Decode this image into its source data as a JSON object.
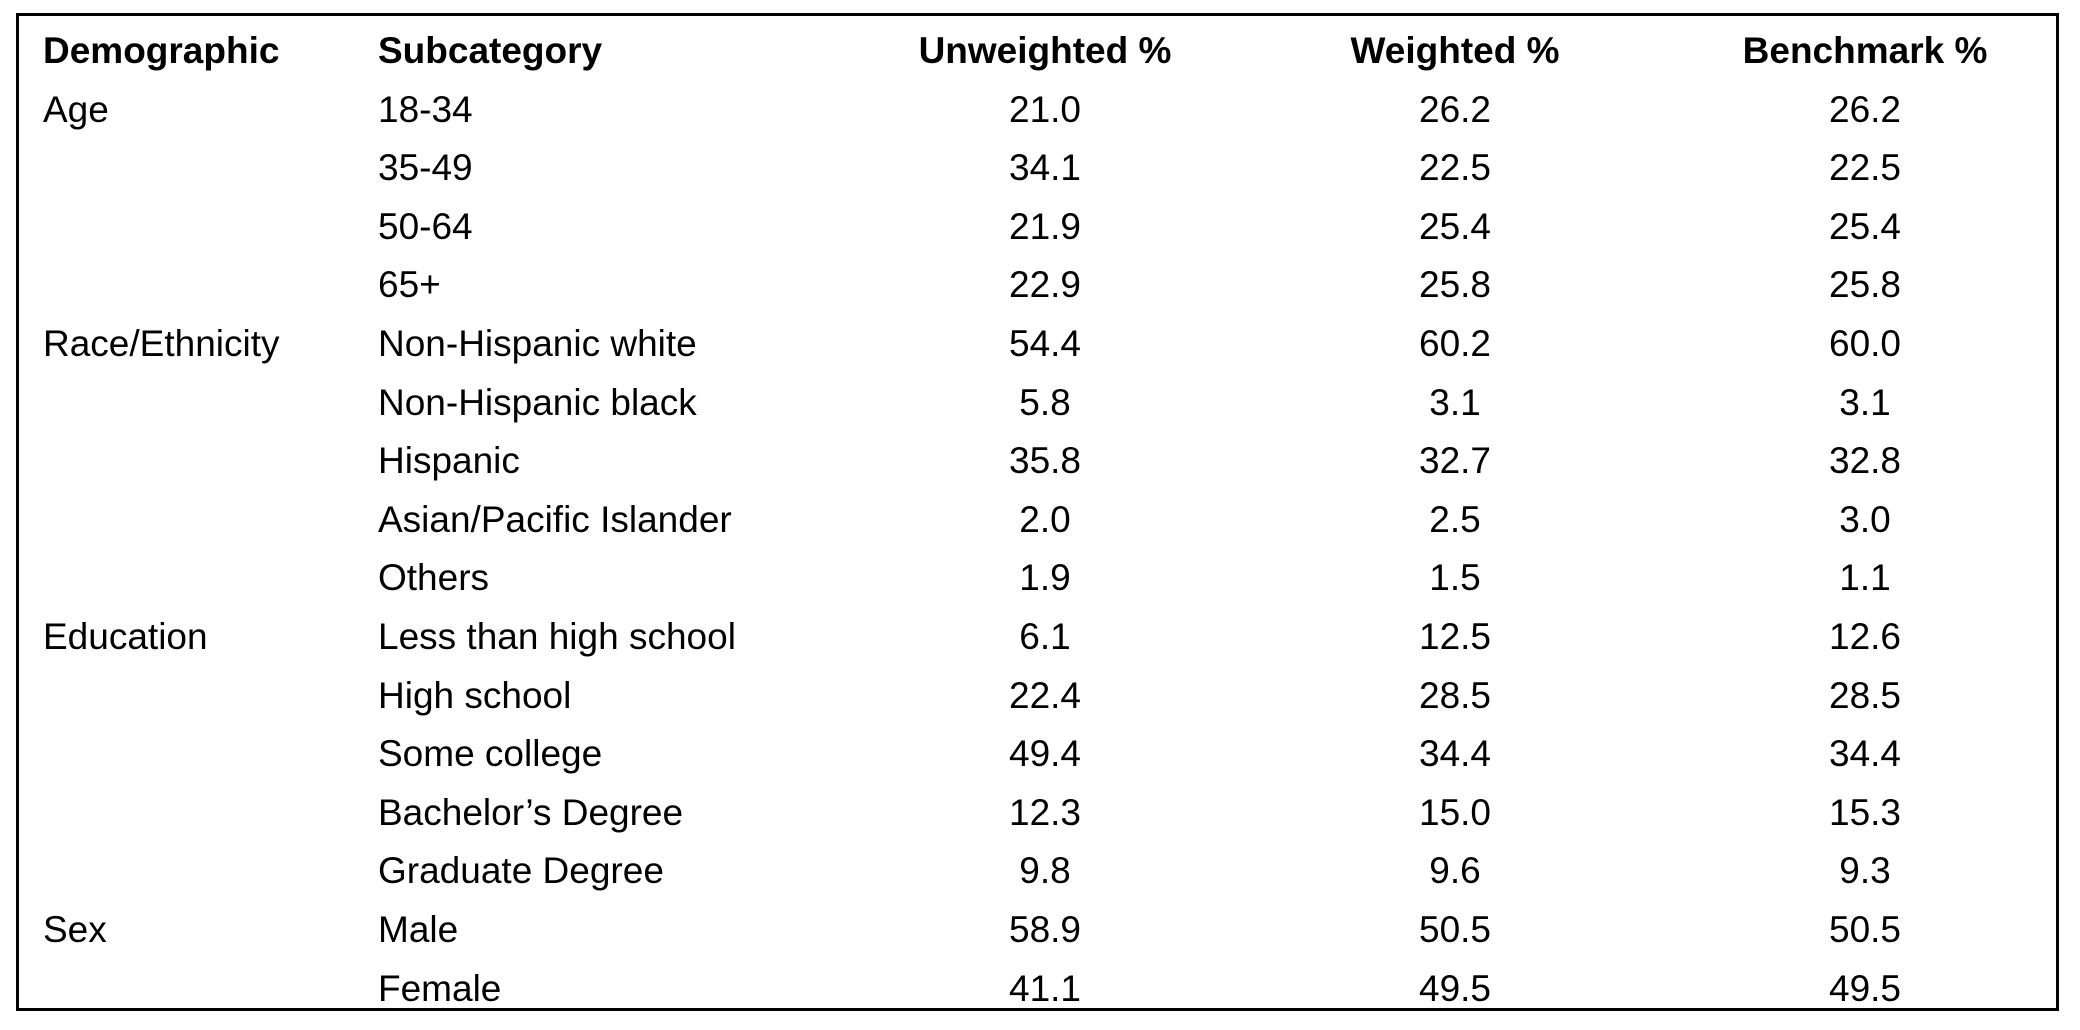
{
  "table": {
    "header": [
      "Demographic",
      "Subcategory",
      "Unweighted %",
      "Weighted %",
      "Benchmark %"
    ],
    "groups": [
      {
        "name": "Age",
        "rows": [
          [
            "18-34",
            "21.0",
            "26.2",
            "26.2"
          ],
          [
            "35-49",
            "34.1",
            "22.5",
            "22.5"
          ],
          [
            "50-64",
            "21.9",
            "25.4",
            "25.4"
          ],
          [
            "65+",
            "22.9",
            "25.8",
            "25.8"
          ]
        ]
      },
      {
        "name": "Race/Ethnicity",
        "rows": [
          [
            "Non-Hispanic white",
            "54.4",
            "60.2",
            "60.0"
          ],
          [
            "Non-Hispanic black",
            "5.8",
            "3.1",
            "3.1"
          ],
          [
            "Hispanic",
            "35.8",
            "32.7",
            "32.8"
          ],
          [
            "Asian/Pacific Islander",
            "2.0",
            "2.5",
            "3.0"
          ],
          [
            "Others",
            "1.9",
            "1.5",
            "1.1"
          ]
        ]
      },
      {
        "name": "Education",
        "rows": [
          [
            "Less than high school",
            "6.1",
            "12.5",
            "12.6"
          ],
          [
            "High school",
            "22.4",
            "28.5",
            "28.5"
          ],
          [
            "Some college",
            "49.4",
            "34.4",
            "34.4"
          ],
          [
            "Bachelor’s Degree",
            "12.3",
            "15.0",
            "15.3"
          ],
          [
            "Graduate Degree",
            "9.8",
            "9.6",
            "9.3"
          ]
        ]
      },
      {
        "name": "Sex",
        "rows": [
          [
            "Male",
            "58.9",
            "50.5",
            "50.5"
          ],
          [
            "Female",
            "41.1",
            "49.5",
            "49.5"
          ]
        ]
      }
    ]
  }
}
